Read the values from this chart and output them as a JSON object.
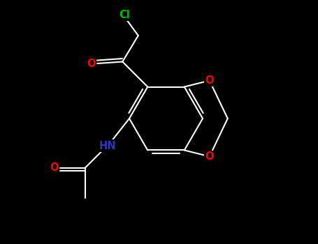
{
  "background_color": "#000000",
  "bond_color": "#ffffff",
  "figsize": [
    4.55,
    3.5
  ],
  "dpi": 100,
  "cl_color": "#00bb00",
  "o_color": "#ff0000",
  "n_color": "#3333bb",
  "bond_width": 1.5,
  "font_size": 10.5,
  "xlim": [
    0,
    9
  ],
  "ylim": [
    0,
    7
  ]
}
